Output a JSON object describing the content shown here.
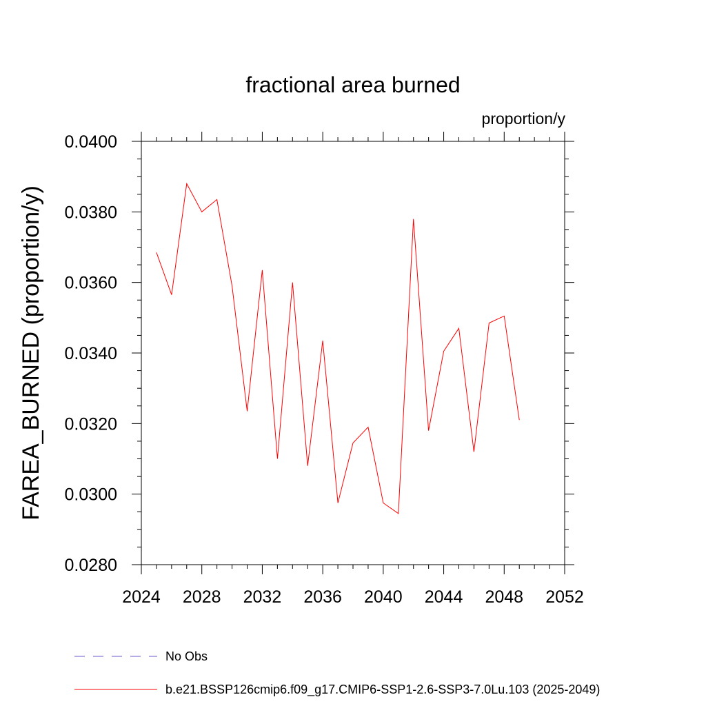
{
  "chart_data": {
    "type": "line",
    "title": "fractional area burned",
    "units": "proportion/y",
    "xlabel": "",
    "ylabel": "FAREA_BURNED  (proportion/y)",
    "xlim": [
      2024,
      2052
    ],
    "ylim": [
      0.028,
      0.04
    ],
    "xticks": [
      2024,
      2028,
      2032,
      2036,
      2040,
      2044,
      2048,
      2052
    ],
    "xtick_labels": [
      "2024",
      "2028",
      "2032",
      "2036",
      "2040",
      "2044",
      "2048",
      "2052"
    ],
    "yticks": [
      0.028,
      0.03,
      0.032,
      0.034,
      0.036,
      0.038,
      0.04
    ],
    "ytick_labels": [
      "0.0280",
      "0.0300",
      "0.0320",
      "0.0340",
      "0.0360",
      "0.0380",
      "0.0400"
    ],
    "grid": false,
    "series": [
      {
        "name": "b.e21.BSSP126cmip6.f09_g17.CMIP6-SSP1-2.6-SSP3-7.0Lu.103 (2025-2049)",
        "color": "#ff0000",
        "x": [
          2025,
          2026,
          2027,
          2028,
          2029,
          2030,
          2031,
          2032,
          2033,
          2034,
          2035,
          2036,
          2037,
          2038,
          2039,
          2040,
          2041,
          2042,
          2043,
          2044,
          2045,
          2046,
          2047,
          2048,
          2049
        ],
        "y": [
          0.03685,
          0.03565,
          0.0388,
          0.038,
          0.03835,
          0.0359,
          0.03235,
          0.03635,
          0.031,
          0.036,
          0.0308,
          0.03435,
          0.02975,
          0.03145,
          0.0319,
          0.02975,
          0.02945,
          0.0378,
          0.0318,
          0.03405,
          0.0347,
          0.0312,
          0.03485,
          0.03505,
          0.0321
        ]
      }
    ],
    "legend": [
      {
        "label": "No Obs",
        "color": "#6a5acd",
        "style": "dashed"
      },
      {
        "label": "b.e21.BSSP126cmip6.f09_g17.CMIP6-SSP1-2.6-SSP3-7.0Lu.103 (2025-2049)",
        "color": "#ff0000",
        "style": "solid"
      }
    ],
    "legend_position": "bottom"
  }
}
